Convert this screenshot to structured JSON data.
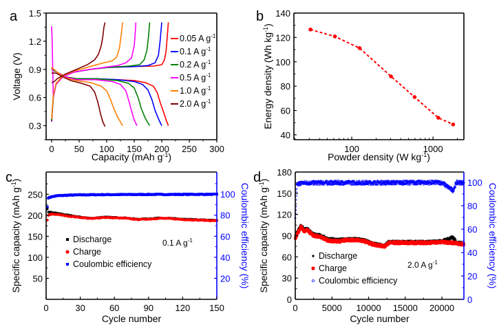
{
  "chart_data": [
    {
      "panel": "a",
      "type": "line",
      "title": "",
      "xlabel": "Capacity (mAh g",
      "xlabel_sup": "-1",
      "xlabel_end": ")",
      "ylabel": "Voltage (V)",
      "xlim": [
        -10,
        300
      ],
      "ylim": [
        0.15,
        1.5
      ],
      "xticks": [
        0,
        50,
        100,
        150,
        200,
        250,
        300
      ],
      "yticks": [
        0.3,
        0.6,
        0.9,
        1.2,
        1.5
      ],
      "ytick_labels": [
        "0.3",
        "0.6",
        "0.9",
        "1.2",
        "1.5"
      ],
      "legend_position": "right",
      "series": [
        {
          "name": "0.05 A g",
          "sup": "-1",
          "color": "#ff0000",
          "charge": [
            [
              0,
              0.34
            ],
            [
              3,
              0.6
            ],
            [
              8,
              0.74
            ],
            [
              20,
              0.82
            ],
            [
              40,
              0.87
            ],
            [
              70,
              0.9
            ],
            [
              100,
              0.92
            ],
            [
              150,
              0.93
            ],
            [
              185,
              0.935
            ],
            [
              200,
              0.95
            ],
            [
              205,
              1.0
            ],
            [
              208,
              1.1
            ],
            [
              210,
              1.25
            ],
            [
              212,
              1.4
            ]
          ],
          "discharge": [
            [
              0,
              0.91
            ],
            [
              10,
              0.87
            ],
            [
              25,
              0.82
            ],
            [
              45,
              0.8
            ],
            [
              80,
              0.8
            ],
            [
              120,
              0.79
            ],
            [
              150,
              0.78
            ],
            [
              170,
              0.76
            ],
            [
              185,
              0.72
            ],
            [
              192,
              0.65
            ],
            [
              197,
              0.55
            ],
            [
              203,
              0.45
            ],
            [
              208,
              0.36
            ],
            [
              212,
              0.3
            ]
          ]
        },
        {
          "name": "0.1 A g",
          "sup": "-1",
          "color": "#0000ff",
          "charge": [
            [
              0,
              0.35
            ],
            [
              3,
              0.6
            ],
            [
              8,
              0.74
            ],
            [
              20,
              0.82
            ],
            [
              40,
              0.87
            ],
            [
              70,
              0.9
            ],
            [
              100,
              0.92
            ],
            [
              150,
              0.93
            ],
            [
              175,
              0.94
            ],
            [
              188,
              0.97
            ],
            [
              194,
              1.05
            ],
            [
              197,
              1.2
            ],
            [
              200,
              1.4
            ]
          ],
          "discharge": [
            [
              0,
              0.9
            ],
            [
              10,
              0.87
            ],
            [
              25,
              0.82
            ],
            [
              45,
              0.8
            ],
            [
              80,
              0.8
            ],
            [
              120,
              0.79
            ],
            [
              150,
              0.77
            ],
            [
              165,
              0.74
            ],
            [
              175,
              0.68
            ],
            [
              182,
              0.58
            ],
            [
              188,
              0.46
            ],
            [
              195,
              0.36
            ],
            [
              200,
              0.3
            ]
          ]
        },
        {
          "name": "0.2 A g",
          "sup": "-1",
          "color": "#008000",
          "charge": [
            [
              0,
              0.36
            ],
            [
              3,
              0.6
            ],
            [
              8,
              0.74
            ],
            [
              20,
              0.82
            ],
            [
              40,
              0.87
            ],
            [
              70,
              0.9
            ],
            [
              100,
              0.92
            ],
            [
              140,
              0.935
            ],
            [
              160,
              0.95
            ],
            [
              168,
              1.0
            ],
            [
              173,
              1.1
            ],
            [
              176,
              1.25
            ],
            [
              178,
              1.4
            ]
          ],
          "discharge": [
            [
              0,
              0.9
            ],
            [
              10,
              0.87
            ],
            [
              25,
              0.82
            ],
            [
              45,
              0.8
            ],
            [
              80,
              0.8
            ],
            [
              120,
              0.78
            ],
            [
              140,
              0.75
            ],
            [
              150,
              0.7
            ],
            [
              157,
              0.6
            ],
            [
              163,
              0.48
            ],
            [
              170,
              0.38
            ],
            [
              178,
              0.3
            ]
          ]
        },
        {
          "name": "0.5 A g",
          "sup": "-1",
          "color": "#ff00ff",
          "charge": [
            [
              0,
              1.36
            ],
            [
              1,
              1.2
            ],
            [
              2,
              0.9
            ],
            [
              3,
              0.6
            ],
            [
              8,
              0.74
            ],
            [
              20,
              0.82
            ],
            [
              40,
              0.87
            ],
            [
              70,
              0.9
            ],
            [
              100,
              0.925
            ],
            [
              120,
              0.94
            ],
            [
              135,
              0.97
            ],
            [
              145,
              1.02
            ],
            [
              150,
              1.15
            ],
            [
              152,
              1.3
            ],
            [
              153,
              1.4
            ]
          ],
          "discharge": [
            [
              0,
              0.92
            ],
            [
              10,
              0.87
            ],
            [
              25,
              0.82
            ],
            [
              45,
              0.79
            ],
            [
              80,
              0.79
            ],
            [
              110,
              0.77
            ],
            [
              125,
              0.74
            ],
            [
              135,
              0.67
            ],
            [
              140,
              0.57
            ],
            [
              145,
              0.46
            ],
            [
              150,
              0.36
            ],
            [
              155,
              0.3
            ]
          ]
        },
        {
          "name": "1.0 A g",
          "sup": "-1",
          "color": "#ff7f00",
          "charge": [
            [
              0,
              0.37
            ],
            [
              3,
              0.62
            ],
            [
              8,
              0.75
            ],
            [
              20,
              0.83
            ],
            [
              40,
              0.88
            ],
            [
              70,
              0.93
            ],
            [
              95,
              0.97
            ],
            [
              110,
              0.99
            ],
            [
              118,
              1.03
            ],
            [
              123,
              1.12
            ],
            [
              126,
              1.25
            ],
            [
              129,
              1.4
            ]
          ],
          "discharge": [
            [
              0,
              0.92
            ],
            [
              10,
              0.87
            ],
            [
              25,
              0.81
            ],
            [
              45,
              0.78
            ],
            [
              70,
              0.76
            ],
            [
              90,
              0.72
            ],
            [
              100,
              0.67
            ],
            [
              107,
              0.58
            ],
            [
              113,
              0.48
            ],
            [
              120,
              0.39
            ],
            [
              129,
              0.3
            ]
          ]
        },
        {
          "name": "2.0 A g",
          "sup": "-1",
          "color": "#7f0000",
          "charge": [
            [
              0,
              0.76
            ],
            [
              5,
              0.77
            ],
            [
              10,
              0.8
            ],
            [
              25,
              0.85
            ],
            [
              45,
              0.9
            ],
            [
              65,
              0.95
            ],
            [
              78,
              1.0
            ],
            [
              85,
              1.06
            ],
            [
              90,
              1.15
            ],
            [
              93,
              1.25
            ],
            [
              95,
              1.35
            ],
            [
              97,
              1.4
            ]
          ],
          "discharge": [
            [
              0,
              0.86
            ],
            [
              8,
              0.86
            ],
            [
              20,
              0.82
            ],
            [
              35,
              0.78
            ],
            [
              55,
              0.75
            ],
            [
              70,
              0.72
            ],
            [
              78,
              0.66
            ],
            [
              83,
              0.57
            ],
            [
              86,
              0.5
            ],
            [
              89,
              0.42
            ],
            [
              93,
              0.34
            ],
            [
              97,
              0.29
            ]
          ]
        }
      ]
    },
    {
      "panel": "b",
      "type": "line",
      "xscale": "log",
      "title": "",
      "xlabel": "Powder density (W kg",
      "xlabel_sup": "-1",
      "xlabel_end": ")",
      "ylabel": "Energy density (Wh kg",
      "ylabel_sup": "-1",
      "ylabel_end": ")",
      "xlim": [
        19.4,
        2400
      ],
      "ylim": [
        36,
        140
      ],
      "xticks": [
        100,
        1000
      ],
      "yticks": [
        40,
        60,
        80,
        100,
        120,
        140
      ],
      "color": "#ff0000",
      "x": [
        31,
        62,
        125,
        304,
        594,
        1162,
        1771
      ],
      "y": [
        126.5,
        120.8,
        111.2,
        88,
        71,
        54,
        48.5
      ]
    },
    {
      "panel": "c",
      "type": "scatter",
      "title": "",
      "xlabel": "Cycle number",
      "ylabel": "Specific capacity (mAh g",
      "ylabel_sup": "-1",
      "ylabel_end": ")",
      "y2label": "Coulombic efficiency (%)",
      "xlim": [
        0,
        150
      ],
      "ylim": [
        0,
        303
      ],
      "y2lim": [
        0,
        121
      ],
      "xticks": [
        0,
        30,
        60,
        90,
        120,
        150
      ],
      "yticks": [
        50,
        100,
        150,
        200,
        250
      ],
      "y2ticks": [
        20,
        40,
        60,
        80,
        100
      ],
      "annotation": "0.1 A g",
      "annotation_sup": "-1",
      "legend_position": "center-left",
      "series": [
        {
          "name": "Discharge",
          "color": "#000000",
          "axis": "left",
          "marker": "square",
          "x": [
            1,
            2,
            5,
            10,
            20,
            30,
            40,
            50,
            60,
            70,
            80,
            90,
            100,
            110,
            120,
            130,
            140,
            150
          ],
          "y": [
            215,
            208,
            207,
            205,
            200,
            196,
            193,
            196,
            195,
            194,
            191,
            192,
            194,
            193,
            191,
            190,
            189,
            188
          ]
        },
        {
          "name": "Charge",
          "color": "#ff0000",
          "axis": "left",
          "marker": "circle",
          "x": [
            1,
            2,
            5,
            10,
            20,
            30,
            40,
            50,
            60,
            70,
            80,
            90,
            100,
            110,
            120,
            130,
            140,
            150
          ],
          "y": [
            188,
            200,
            203,
            202,
            198,
            195,
            192,
            195,
            194,
            193,
            190,
            191,
            193,
            192,
            190,
            189,
            188,
            187
          ]
        },
        {
          "name": "Coulombic efficiency",
          "color": "#0000ff",
          "axis": "right",
          "marker": "square",
          "x": [
            1,
            2,
            3,
            5,
            10,
            20,
            30,
            50,
            70,
            90,
            110,
            130,
            150
          ],
          "y": [
            88,
            96,
            97,
            97.5,
            98.5,
            99,
            99.3,
            99.5,
            99.6,
            99.7,
            99.7,
            99.8,
            99.8
          ]
        }
      ]
    },
    {
      "panel": "d",
      "type": "scatter",
      "title": "",
      "xlabel": "Cycle number",
      "ylabel": "Specific capacity (mAh g",
      "ylabel_sup": "-1",
      "ylabel_end": ")",
      "y2label": "Coulombic efficiency (%)",
      "xlim": [
        0,
        23000
      ],
      "ylim": [
        0,
        180
      ],
      "y2lim": [
        0,
        108.8
      ],
      "xticks": [
        0,
        5000,
        10000,
        15000,
        20000
      ],
      "yticks": [
        0,
        30,
        60,
        90,
        120,
        150,
        180
      ],
      "y2ticks": [
        0,
        20,
        40,
        60,
        80,
        100
      ],
      "annotation": "2.0 A g",
      "annotation_sup": "-1",
      "legend_position": "bottom-left",
      "series": [
        {
          "name": "Discharge",
          "color": "#000000",
          "axis": "left",
          "marker": "square",
          "x": [
            0,
            300,
            800,
            1200,
            1600,
            2500,
            3500,
            4500,
            6000,
            7000,
            8500,
            9500,
            10500,
            11500,
            12200,
            12800,
            14000,
            16000,
            18000,
            20000,
            21500,
            22000,
            23000
          ],
          "y": [
            88,
            95,
            104,
            98,
            100,
            92,
            90,
            85,
            84,
            85,
            85,
            83,
            79,
            77,
            76,
            81,
            81,
            81,
            81,
            82,
            88,
            80,
            79
          ]
        },
        {
          "name": "Charge",
          "color": "#ff0000",
          "axis": "left",
          "marker": "circle",
          "x": [
            0,
            300,
            800,
            1200,
            1600,
            2500,
            3500,
            4500,
            6000,
            7000,
            8500,
            9500,
            10500,
            11500,
            12200,
            12800,
            14000,
            16000,
            18000,
            20000,
            21500,
            22000,
            23000
          ],
          "y": [
            86,
            93,
            103,
            96,
            98,
            90,
            88,
            83,
            82,
            84,
            84,
            82,
            78,
            76,
            75,
            80,
            80,
            80,
            80,
            81,
            80,
            79,
            78
          ]
        },
        {
          "name": "Coulombic efficiency",
          "color": "#0000ff",
          "axis": "right",
          "marker": "open-circle",
          "x": [
            0,
            200,
            500,
            1000,
            5000,
            10000,
            15000,
            20000,
            21500,
            22000,
            23000
          ],
          "y": [
            70,
            97,
            99,
            99.5,
            99.7,
            99.7,
            99.8,
            99.8,
            93,
            99.8,
            99.8
          ]
        }
      ]
    }
  ],
  "panel_labels": [
    "a",
    "b",
    "c",
    "d"
  ]
}
